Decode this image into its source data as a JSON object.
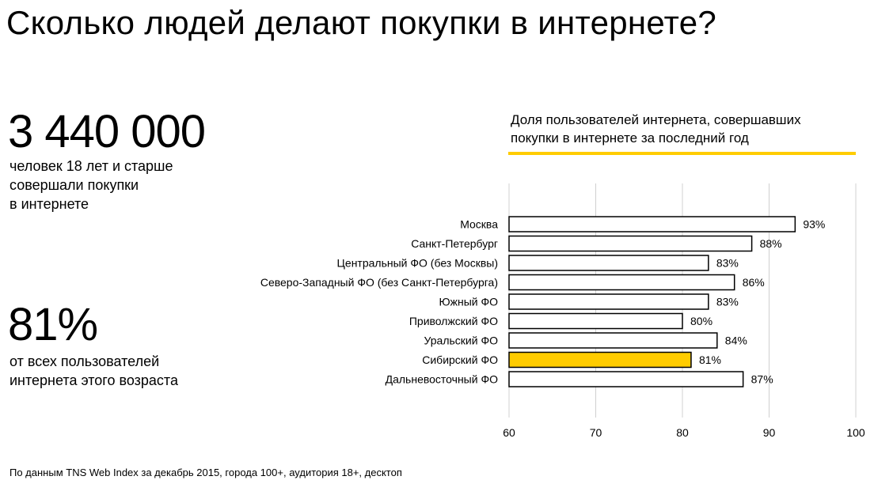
{
  "page": {
    "title": "Сколько людей делают покупки в интернете?",
    "stat1": {
      "value": "3 440 000",
      "caption": "человек 18 лет и старше\nсовершали покупки\nв интернете"
    },
    "stat2": {
      "value": "81%",
      "caption": "от всех пользователей\nинтернета этого возраста"
    },
    "footnote": "По данным TNS Web Index за декабрь 2015, города 100+, аудитория 18+, десктоп"
  },
  "colors": {
    "accent": "#FFCC00",
    "bar_default": "#FFFFFF",
    "bar_outline": "#000000",
    "grid": "#D0D0D0"
  },
  "chart_data": {
    "type": "bar",
    "orientation": "horizontal",
    "title": "Доля пользователей интернета, совершавших\nпокупки в интернете за последний год",
    "categories": [
      "Москва",
      "Санкт-Петербург",
      "Центральный ФО (без Москвы)",
      "Северо-Западный ФО (без Санкт-Петербурга)",
      "Южный ФО",
      "Приволжский ФО",
      "Уральский ФО",
      "Сибирский ФО",
      "Дальневосточный ФО"
    ],
    "values": [
      93,
      88,
      83,
      86,
      83,
      80,
      84,
      81,
      87
    ],
    "value_labels": [
      "93%",
      "88%",
      "83%",
      "86%",
      "83%",
      "80%",
      "84%",
      "81%",
      "87%"
    ],
    "highlight": "Сибирский ФО",
    "xlim": [
      60,
      100
    ],
    "xticks": [
      "60",
      "70",
      "80",
      "90",
      "100"
    ],
    "grid": true,
    "legend": "none"
  }
}
